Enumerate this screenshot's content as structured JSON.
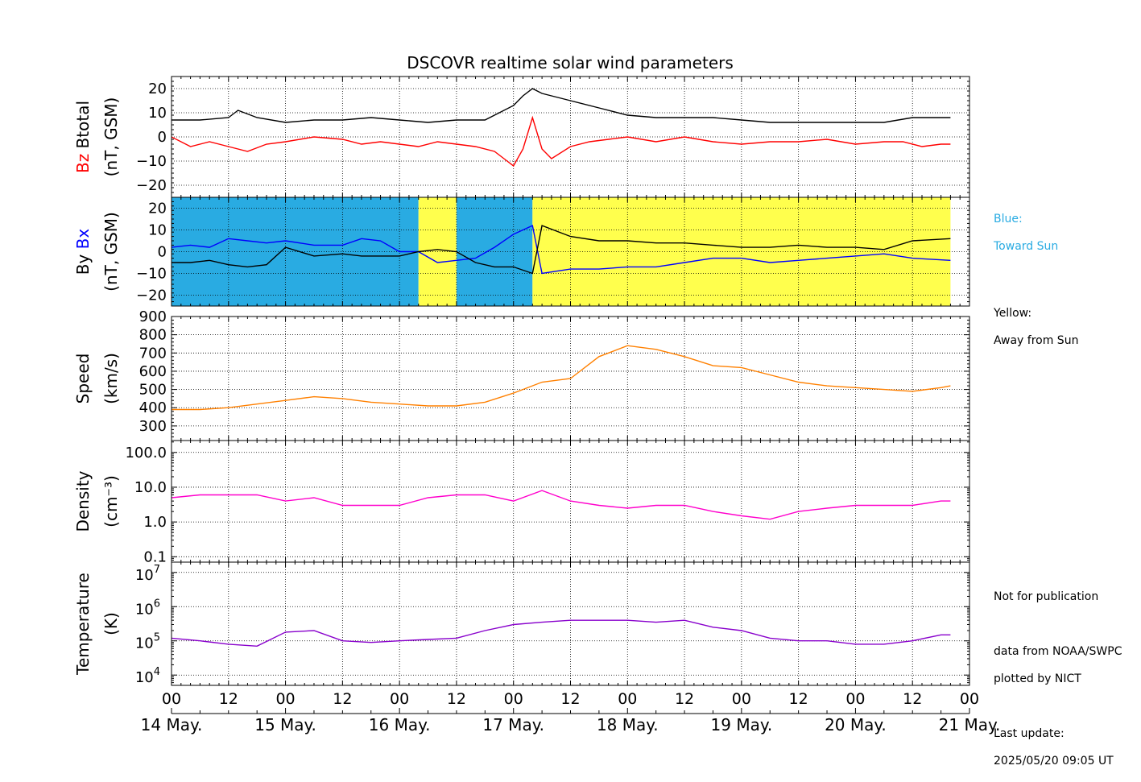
{
  "title": "DSCOVR realtime solar wind parameters",
  "legend_notes": {
    "blue_label": "Blue:",
    "blue_desc": "Toward Sun",
    "yellow_label": "Yellow:",
    "yellow_desc": "Away from Sun"
  },
  "footer_notes": {
    "line1": "Not for publication",
    "line2": "data from NOAA/SWPC",
    "line3": "plotted by NICT",
    "line4": "Last update:",
    "line5": "2025/05/20 09:05 UT"
  },
  "colors": {
    "toward_sun": "#29abe2",
    "away_from_sun": "#ffff4d",
    "btotal": "#000000",
    "bz": "#ff0000",
    "bx": "#0000ff",
    "by": "#000000",
    "speed": "#ff8000",
    "density": "#ff00cc",
    "temperature": "#8800cc"
  },
  "chart_data": [
    {
      "type": "line",
      "ylabel_parts": [
        "Bz",
        "Btotal",
        "(nT, GSM)"
      ],
      "ylim": [
        -25,
        25
      ],
      "yticks": [
        -20,
        -10,
        0,
        10,
        20
      ],
      "yticklabels": [
        "−20",
        "−10",
        "0",
        "10",
        "20"
      ],
      "grid": true,
      "series": [
        {
          "name": "Btotal",
          "x": [
            0,
            6,
            12,
            14,
            18,
            24,
            30,
            36,
            42,
            48,
            54,
            60,
            66,
            72,
            74,
            76,
            78,
            80,
            84,
            90,
            96,
            102,
            108,
            114,
            120,
            126,
            132,
            138,
            144,
            150,
            156,
            162,
            164
          ],
          "values": [
            7,
            7,
            8,
            11,
            8,
            6,
            7,
            7,
            8,
            7,
            6,
            7,
            7,
            13,
            17,
            20,
            18,
            17,
            15,
            12,
            9,
            8,
            8,
            8,
            7,
            6,
            6,
            6,
            6,
            6,
            8,
            8,
            8
          ]
        },
        {
          "name": "Bz",
          "x": [
            0,
            4,
            8,
            12,
            16,
            20,
            24,
            30,
            36,
            40,
            44,
            48,
            52,
            56,
            60,
            64,
            68,
            70,
            72,
            74,
            76,
            78,
            80,
            84,
            88,
            92,
            96,
            102,
            108,
            114,
            120,
            126,
            132,
            138,
            144,
            150,
            154,
            158,
            162,
            164
          ],
          "values": [
            0,
            -4,
            -2,
            -4,
            -6,
            -3,
            -2,
            0,
            -1,
            -3,
            -2,
            -3,
            -4,
            -2,
            -3,
            -4,
            -6,
            -9,
            -12,
            -5,
            8,
            -5,
            -9,
            -4,
            -2,
            -1,
            0,
            -2,
            0,
            -2,
            -3,
            -2,
            -2,
            -1,
            -3,
            -2,
            -2,
            -4,
            -3,
            -3
          ]
        }
      ]
    },
    {
      "type": "line",
      "ylabel_parts": [
        "By",
        "Bx",
        "(nT, GSM)"
      ],
      "ylim": [
        -25,
        25
      ],
      "yticks": [
        -20,
        -10,
        0,
        10,
        20
      ],
      "yticklabels": [
        "−20",
        "−10",
        "0",
        "10",
        "20"
      ],
      "grid": true,
      "sector_bands": [
        {
          "from": 0,
          "to": 52,
          "sector": "toward"
        },
        {
          "from": 52,
          "to": 60,
          "sector": "away"
        },
        {
          "from": 60,
          "to": 76,
          "sector": "toward"
        },
        {
          "from": 76,
          "to": 164,
          "sector": "away"
        }
      ],
      "series": [
        {
          "name": "Bx",
          "x": [
            0,
            4,
            8,
            12,
            16,
            20,
            24,
            30,
            36,
            40,
            44,
            48,
            52,
            56,
            60,
            64,
            68,
            72,
            76,
            78,
            84,
            90,
            96,
            102,
            108,
            114,
            120,
            126,
            132,
            138,
            144,
            150,
            156,
            164
          ],
          "values": [
            2,
            3,
            2,
            6,
            5,
            4,
            5,
            3,
            3,
            6,
            5,
            0,
            0,
            -5,
            -4,
            -3,
            2,
            8,
            12,
            -10,
            -8,
            -8,
            -7,
            -7,
            -5,
            -3,
            -3,
            -5,
            -4,
            -3,
            -2,
            -1,
            -3,
            -4
          ]
        },
        {
          "name": "By",
          "x": [
            0,
            4,
            8,
            12,
            16,
            20,
            24,
            30,
            36,
            40,
            44,
            48,
            52,
            56,
            60,
            64,
            68,
            72,
            76,
            78,
            84,
            90,
            96,
            102,
            108,
            114,
            120,
            126,
            132,
            138,
            144,
            150,
            156,
            164
          ],
          "values": [
            -5,
            -5,
            -4,
            -6,
            -7,
            -6,
            2,
            -2,
            -1,
            -2,
            -2,
            -2,
            0,
            1,
            0,
            -5,
            -7,
            -7,
            -10,
            12,
            7,
            5,
            5,
            4,
            4,
            3,
            2,
            2,
            3,
            2,
            2,
            1,
            5,
            6
          ]
        }
      ]
    },
    {
      "type": "line",
      "ylabel_parts": [
        "Speed",
        "(km/s)"
      ],
      "ylim": [
        220,
        900
      ],
      "yticks": [
        300,
        400,
        500,
        600,
        700,
        800,
        900
      ],
      "yticklabels": [
        "300",
        "400",
        "500",
        "600",
        "700",
        "800",
        "900"
      ],
      "grid": true,
      "series": [
        {
          "name": "Speed",
          "x": [
            0,
            6,
            12,
            18,
            24,
            30,
            36,
            42,
            48,
            54,
            60,
            66,
            72,
            78,
            84,
            90,
            96,
            102,
            108,
            114,
            120,
            126,
            132,
            138,
            144,
            150,
            156,
            162,
            164
          ],
          "values": [
            390,
            390,
            400,
            420,
            440,
            460,
            450,
            430,
            420,
            410,
            410,
            430,
            480,
            540,
            560,
            680,
            740,
            720,
            680,
            630,
            620,
            580,
            540,
            520,
            510,
            500,
            490,
            510,
            520
          ]
        }
      ]
    },
    {
      "type": "line",
      "ylabel_parts": [
        "Density",
        "(cm⁻³)"
      ],
      "yscale": "log",
      "ylim": [
        0.07,
        220
      ],
      "yticks": [
        0.1,
        1.0,
        10.0,
        100.0
      ],
      "yticklabels": [
        "0.1",
        "1.0",
        "10.0",
        "100.0"
      ],
      "grid": true,
      "series": [
        {
          "name": "Density",
          "x": [
            0,
            6,
            12,
            18,
            24,
            30,
            36,
            42,
            48,
            54,
            60,
            66,
            72,
            78,
            84,
            90,
            96,
            102,
            108,
            114,
            120,
            126,
            132,
            138,
            144,
            150,
            156,
            162,
            164
          ],
          "values": [
            5,
            6,
            6,
            6,
            4,
            5,
            3,
            3,
            3,
            5,
            6,
            6,
            4,
            8,
            4,
            3,
            2.5,
            3,
            3,
            2,
            1.5,
            1.2,
            2,
            2.5,
            3,
            3,
            3,
            4,
            4
          ]
        }
      ]
    },
    {
      "type": "line",
      "ylabel_parts": [
        "Temperature",
        "(K)"
      ],
      "yscale": "log",
      "ylim": [
        5000,
        20000000
      ],
      "yticks": [
        10000,
        100000,
        1000000,
        10000000
      ],
      "ytick_exponents": [
        "4",
        "5",
        "6",
        "7"
      ],
      "grid": true,
      "series": [
        {
          "name": "Temperature",
          "x": [
            0,
            6,
            12,
            18,
            24,
            30,
            36,
            42,
            48,
            54,
            60,
            66,
            72,
            78,
            84,
            90,
            96,
            102,
            108,
            114,
            120,
            126,
            132,
            138,
            144,
            150,
            156,
            162,
            164
          ],
          "values": [
            120000,
            100000,
            80000,
            70000,
            180000,
            200000,
            100000,
            90000,
            100000,
            110000,
            120000,
            200000,
            300000,
            350000,
            400000,
            400000,
            400000,
            350000,
            400000,
            250000,
            200000,
            120000,
            100000,
            100000,
            80000,
            80000,
            100000,
            150000,
            150000
          ]
        }
      ]
    }
  ],
  "x_axis": {
    "range_hours": [
      0,
      168
    ],
    "tick_hours": [
      0,
      12,
      24,
      36,
      48,
      60,
      72,
      84,
      96,
      108,
      120,
      132,
      144,
      156,
      168
    ],
    "tick_labels": [
      "00",
      "12",
      "00",
      "12",
      "00",
      "12",
      "00",
      "12",
      "00",
      "12",
      "00",
      "12",
      "00",
      "12",
      "00"
    ],
    "date_hours": [
      0,
      24,
      48,
      72,
      96,
      120,
      144,
      168
    ],
    "date_labels": [
      "14 May.",
      "15 May.",
      "16 May.",
      "17 May.",
      "18 May.",
      "19 May.",
      "20 May.",
      "21 May."
    ]
  }
}
